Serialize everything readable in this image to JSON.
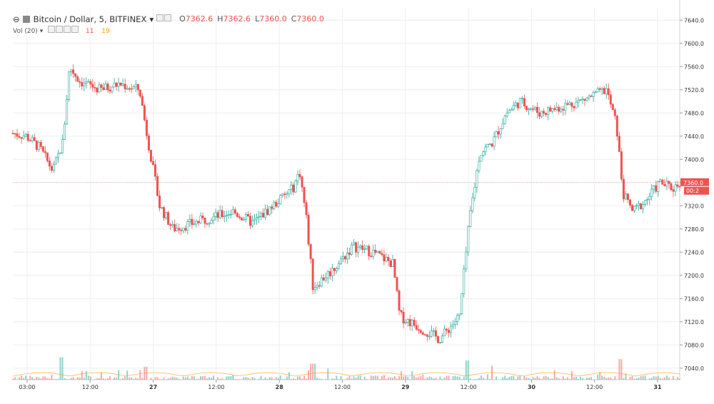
{
  "legend": {
    "symbol": "Bitcoin / Dollar, 5, BITFINEX",
    "ohlc": [
      {
        "key": "O",
        "value": "7362.6"
      },
      {
        "key": "H",
        "value": "7362.6"
      },
      {
        "key": "L",
        "value": "7360.0"
      },
      {
        "key": "C",
        "value": "7360.0"
      }
    ],
    "volume_label": "Vol (20)",
    "volume_values": [
      "11",
      "19"
    ]
  },
  "price_marker": {
    "value": "7360.0",
    "timer": "00:2"
  },
  "colors": {
    "up": "#26a69a",
    "down": "#ef5350",
    "ma": "#ff9800",
    "grid": "#eeeeee",
    "text": "#333333",
    "marker": "#ef5350"
  },
  "chart_data": {
    "type": "candlestick",
    "title": "Bitcoin / Dollar, 5, BITFINEX",
    "x_ticks": [
      "03:00",
      "12:00",
      "27",
      "12:00",
      "28",
      "12:00",
      "29",
      "12:00",
      "30",
      "12:00",
      "31"
    ],
    "y_ticks": [
      7640,
      7600,
      7560,
      7520,
      7480,
      7440,
      7400,
      7360,
      7320,
      7280,
      7240,
      7200,
      7160,
      7120,
      7080,
      7040
    ],
    "ylim": [
      7020,
      7660
    ],
    "price_path": [
      [
        0.0,
        7445
      ],
      [
        0.02,
        7440
      ],
      [
        0.04,
        7420
      ],
      [
        0.06,
        7380
      ],
      [
        0.075,
        7430
      ],
      [
        0.085,
        7560
      ],
      [
        0.1,
        7535
      ],
      [
        0.13,
        7520
      ],
      [
        0.16,
        7530
      ],
      [
        0.19,
        7520
      ],
      [
        0.2,
        7450
      ],
      [
        0.22,
        7320
      ],
      [
        0.24,
        7280
      ],
      [
        0.27,
        7290
      ],
      [
        0.3,
        7300
      ],
      [
        0.33,
        7310
      ],
      [
        0.36,
        7290
      ],
      [
        0.39,
        7320
      ],
      [
        0.42,
        7350
      ],
      [
        0.43,
        7380
      ],
      [
        0.44,
        7300
      ],
      [
        0.45,
        7180
      ],
      [
        0.48,
        7210
      ],
      [
        0.51,
        7250
      ],
      [
        0.54,
        7240
      ],
      [
        0.57,
        7220
      ],
      [
        0.58,
        7130
      ],
      [
        0.61,
        7110
      ],
      [
        0.64,
        7090
      ],
      [
        0.67,
        7130
      ],
      [
        0.685,
        7300
      ],
      [
        0.7,
        7410
      ],
      [
        0.72,
        7430
      ],
      [
        0.74,
        7480
      ],
      [
        0.76,
        7500
      ],
      [
        0.79,
        7480
      ],
      [
        0.82,
        7490
      ],
      [
        0.85,
        7500
      ],
      [
        0.87,
        7510
      ],
      [
        0.89,
        7520
      ],
      [
        0.905,
        7460
      ],
      [
        0.915,
        7340
      ],
      [
        0.93,
        7310
      ],
      [
        0.95,
        7330
      ],
      [
        0.97,
        7360
      ],
      [
        0.99,
        7350
      ],
      [
        1.0,
        7360
      ]
    ],
    "volume_spikes": [
      [
        0.072,
        0.35
      ],
      [
        0.2,
        0.2
      ],
      [
        0.45,
        0.25
      ],
      [
        0.68,
        0.3
      ],
      [
        0.91,
        0.32
      ]
    ]
  }
}
